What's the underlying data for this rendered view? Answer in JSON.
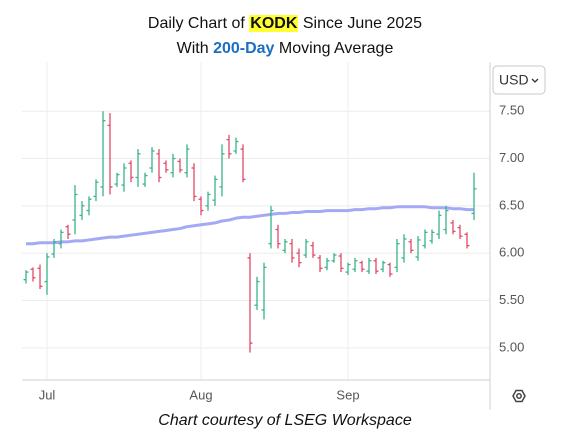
{
  "title": {
    "prefix": "Daily Chart of",
    "ticker": "KODK",
    "suffix": "Since June 2025"
  },
  "subtitle": {
    "prefix": "With",
    "highlight": "200-Day",
    "suffix": "Moving Average"
  },
  "currency": "USD",
  "footer": "Chart courtesy of LSEG Workspace",
  "chart_data": {
    "type": "ohlc",
    "categories": [
      null,
      null,
      null,
      "Jul",
      null,
      null,
      null,
      null,
      null,
      null,
      null,
      null,
      null,
      null,
      null,
      null,
      null,
      null,
      null,
      null,
      null,
      null,
      null,
      null,
      null,
      "Aug",
      null,
      null,
      null,
      null,
      null,
      null,
      null,
      null,
      null,
      null,
      null,
      null,
      null,
      null,
      null,
      null,
      null,
      null,
      null,
      null,
      "Sep",
      null,
      null,
      null,
      null,
      null,
      null,
      null,
      null,
      null,
      null,
      null,
      null,
      null,
      null,
      null,
      null,
      null,
      null
    ],
    "open": [
      5.72,
      5.83,
      5.84,
      5.7,
      5.99,
      6.1,
      6.28,
      6.35,
      6.4,
      6.45,
      6.6,
      6.7,
      7.35,
      6.73,
      6.72,
      6.95,
      6.8,
      6.73,
      6.9,
      7.05,
      6.95,
      6.85,
      6.97,
      6.85,
      6.9,
      6.57,
      6.5,
      6.56,
      6.7,
      7.2,
      7.08,
      7.1,
      5.95,
      5.45,
      5.4,
      6.1,
      6.25,
      6.03,
      6.1,
      6.0,
      5.98,
      6.08,
      5.95,
      5.85,
      5.92,
      5.97,
      5.8,
      5.83,
      5.9,
      5.81,
      5.92,
      5.83,
      5.88,
      5.85,
      5.95,
      6.12,
      5.96,
      6.08,
      6.13,
      6.2,
      6.25,
      6.32,
      6.27,
      6.2,
      6.42
    ],
    "high": [
      5.82,
      5.85,
      5.88,
      6.0,
      6.15,
      6.25,
      6.3,
      6.72,
      6.55,
      6.6,
      6.78,
      7.5,
      7.48,
      6.85,
      6.95,
      6.98,
      7.1,
      6.85,
      7.12,
      7.1,
      6.98,
      7.05,
      7.0,
      7.15,
      6.95,
      6.6,
      6.65,
      6.82,
      7.15,
      7.25,
      7.22,
      7.15,
      6.0,
      5.75,
      5.9,
      6.5,
      6.3,
      6.15,
      6.15,
      6.05,
      6.15,
      6.12,
      5.98,
      5.95,
      6.0,
      6.0,
      5.9,
      5.95,
      5.92,
      5.95,
      5.95,
      5.92,
      5.9,
      6.15,
      6.2,
      6.15,
      6.18,
      6.25,
      6.25,
      6.45,
      6.5,
      6.35,
      6.3,
      6.22,
      6.85
    ],
    "low": [
      5.68,
      5.7,
      5.62,
      5.56,
      5.95,
      6.05,
      6.15,
      6.2,
      6.35,
      6.4,
      6.55,
      6.6,
      6.62,
      6.7,
      6.65,
      6.75,
      6.7,
      6.7,
      6.85,
      6.75,
      6.85,
      6.8,
      6.85,
      6.8,
      6.55,
      6.4,
      6.45,
      6.5,
      6.6,
      7.0,
      7.05,
      6.75,
      4.95,
      5.4,
      5.3,
      6.05,
      6.05,
      6.0,
      5.9,
      5.85,
      5.95,
      5.95,
      5.8,
      5.82,
      5.9,
      5.8,
      5.77,
      5.8,
      5.8,
      5.78,
      5.78,
      5.8,
      5.75,
      5.8,
      5.9,
      6.0,
      5.92,
      6.05,
      6.1,
      6.15,
      6.2,
      6.2,
      6.15,
      6.05,
      6.35
    ],
    "close": [
      5.8,
      5.74,
      5.65,
      5.96,
      6.12,
      6.22,
      6.2,
      6.62,
      6.5,
      6.57,
      6.75,
      7.4,
      6.7,
      6.83,
      6.9,
      6.8,
      7.05,
      6.82,
      7.08,
      6.8,
      6.88,
      7.0,
      6.88,
      7.1,
      6.6,
      6.45,
      6.62,
      6.78,
      7.05,
      7.05,
      7.18,
      6.78,
      5.05,
      5.7,
      5.85,
      6.45,
      6.1,
      6.12,
      5.95,
      5.9,
      6.12,
      5.98,
      5.84,
      5.92,
      5.98,
      5.84,
      5.88,
      5.92,
      5.83,
      5.92,
      5.81,
      5.9,
      5.78,
      6.1,
      6.15,
      6.03,
      6.14,
      6.22,
      6.22,
      6.4,
      6.45,
      6.23,
      6.18,
      6.08,
      6.68
    ],
    "up_color": "#3ab48c",
    "down_color": "#e04a68",
    "moving_average": {
      "color": "#a3a9f4",
      "values": [
        6.1,
        6.1,
        6.11,
        6.11,
        6.11,
        6.12,
        6.12,
        6.13,
        6.13,
        6.14,
        6.15,
        6.16,
        6.17,
        6.17,
        6.18,
        6.19,
        6.2,
        6.21,
        6.22,
        6.23,
        6.24,
        6.25,
        6.26,
        6.28,
        6.29,
        6.3,
        6.31,
        6.32,
        6.34,
        6.35,
        6.37,
        6.38,
        6.38,
        6.39,
        6.4,
        6.41,
        6.42,
        6.42,
        6.43,
        6.43,
        6.44,
        6.44,
        6.44,
        6.45,
        6.45,
        6.45,
        6.45,
        6.46,
        6.46,
        6.47,
        6.47,
        6.48,
        6.48,
        6.49,
        6.49,
        6.49,
        6.49,
        6.49,
        6.48,
        6.48,
        6.48,
        6.47,
        6.47,
        6.46,
        6.46
      ]
    },
    "ylim": [
      4.66,
      8.02
    ],
    "yticks": [
      {
        "value": 5,
        "label": "5.00"
      },
      {
        "value": 5.5,
        "label": "5.50"
      },
      {
        "value": 6,
        "label": "6.00"
      },
      {
        "value": 6.5,
        "label": "6.50"
      },
      {
        "value": 7,
        "label": "7.00"
      },
      {
        "value": 7.5,
        "label": "7.50"
      }
    ],
    "grid": true,
    "y_axis_side": "right"
  }
}
